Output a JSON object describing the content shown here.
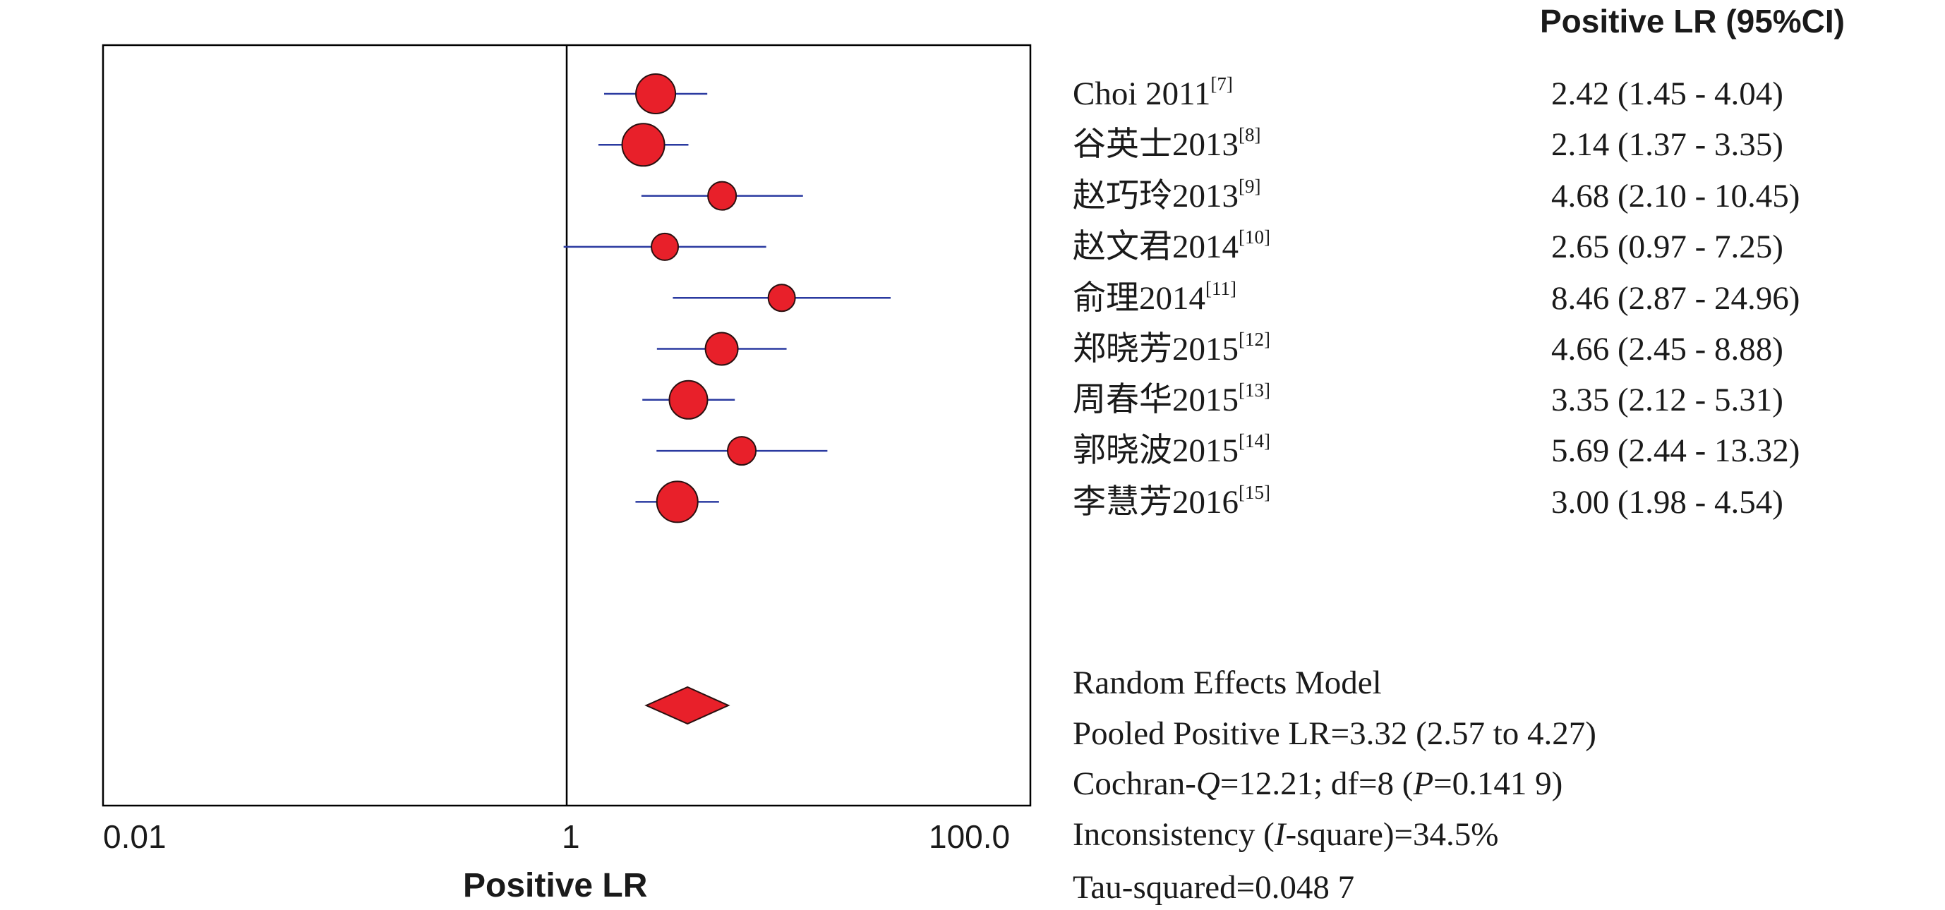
{
  "chart_data": {
    "type": "scatter",
    "xlabel": "Positive LR",
    "x_scale": "log",
    "xlim": [
      0.01,
      100.0
    ],
    "x_ticks": [
      "0.01",
      "1",
      "100.0"
    ],
    "reference_line": 1,
    "column_header": "Positive LR (95%CI)",
    "studies": [
      {
        "name": "Choi 2011",
        "ref": "[7]",
        "value": 2.42,
        "ci": [
          1.45,
          4.04
        ],
        "label": "2.42 (1.45 - 4.04)"
      },
      {
        "name": "谷英士2013",
        "ref": "[8]",
        "value": 2.14,
        "ci": [
          1.37,
          3.35
        ],
        "label": "2.14 (1.37 - 3.35)"
      },
      {
        "name": "赵巧玲2013",
        "ref": "[9]",
        "value": 4.68,
        "ci": [
          2.1,
          10.45
        ],
        "label": "4.68 (2.10 - 10.45)"
      },
      {
        "name": "赵文君2014",
        "ref": "[10]",
        "value": 2.65,
        "ci": [
          0.97,
          7.25
        ],
        "label": "2.65 (0.97 - 7.25)"
      },
      {
        "name": "俞理2014",
        "ref": "[11]",
        "value": 8.46,
        "ci": [
          2.87,
          24.96
        ],
        "label": "8.46 (2.87 - 24.96)"
      },
      {
        "name": "郑晓芳2015",
        "ref": "[12]",
        "value": 4.66,
        "ci": [
          2.45,
          8.88
        ],
        "label": "4.66 (2.45 - 8.88)"
      },
      {
        "name": "周春华2015",
        "ref": "[13]",
        "value": 3.35,
        "ci": [
          2.12,
          5.31
        ],
        "label": "3.35 (2.12 - 5.31)"
      },
      {
        "name": "郭晓波2015",
        "ref": "[14]",
        "value": 5.69,
        "ci": [
          2.44,
          13.32
        ],
        "label": "5.69 (2.44 - 13.32)"
      },
      {
        "name": "李慧芳2016",
        "ref": "[15]",
        "value": 3.0,
        "ci": [
          1.98,
          4.54
        ],
        "label": "3.00 (1.98 - 4.54)"
      }
    ],
    "pooled": {
      "value": 3.32,
      "ci": [
        2.57,
        4.27
      ]
    },
    "summary": {
      "model": "Random Effects Model",
      "pooled_text": "Pooled Positive LR=3.32 (2.57 to 4.27)",
      "cochran_prefix": "Cochran-",
      "cochran_q_symbol": "Q",
      "cochran_middle": "=12.21; df=8 (",
      "cochran_p_symbol": "P",
      "cochran_suffix": "=0.141 9)",
      "inconsistency_prefix": "Inconsistency (",
      "inconsistency_symbol": "I",
      "inconsistency_suffix": "-square)=34.5%",
      "tau_text": "Tau-squared=0.048 7"
    },
    "colors": {
      "marker_fill": "#e8202a",
      "marker_stroke": "#2a1010",
      "ci_line": "#2a3aa0",
      "axis": "#000000"
    }
  }
}
